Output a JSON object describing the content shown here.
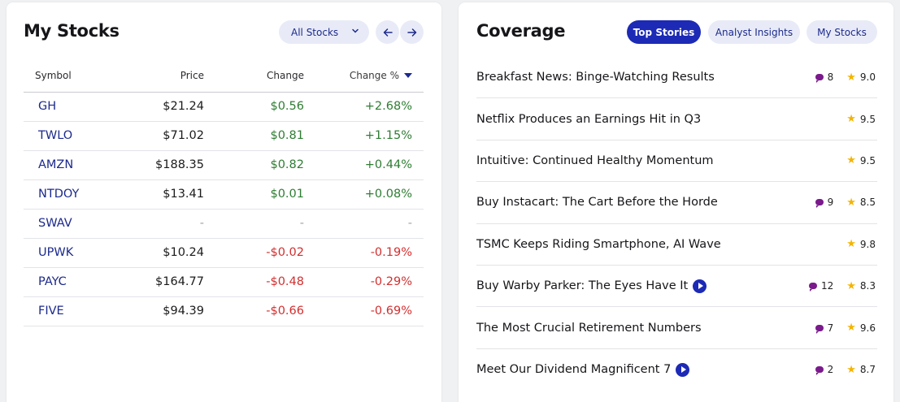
{
  "my_stocks": {
    "title": "My Stocks",
    "dropdown": {
      "selected": "All Stocks",
      "icon": "chevron-down-icon"
    },
    "nav": {
      "prev_icon": "arrow-left-icon",
      "next_icon": "arrow-right-icon"
    },
    "columns": {
      "symbol": "Symbol",
      "price": "Price",
      "change": "Change",
      "change_pct": "Change %"
    },
    "rows": [
      {
        "symbol": "GH",
        "price": "$21.24",
        "change": "$0.56",
        "change_pct": "+2.68%",
        "dir": "pos"
      },
      {
        "symbol": "TWLO",
        "price": "$71.02",
        "change": "$0.81",
        "change_pct": "+1.15%",
        "dir": "pos"
      },
      {
        "symbol": "AMZN",
        "price": "$188.35",
        "change": "$0.82",
        "change_pct": "+0.44%",
        "dir": "pos"
      },
      {
        "symbol": "NTDOY",
        "price": "$13.41",
        "change": "$0.01",
        "change_pct": "+0.08%",
        "dir": "pos"
      },
      {
        "symbol": "SWAV",
        "price": "-",
        "change": "-",
        "change_pct": "-",
        "dir": "nil"
      },
      {
        "symbol": "UPWK",
        "price": "$10.24",
        "change": "-$0.02",
        "change_pct": "-0.19%",
        "dir": "neg"
      },
      {
        "symbol": "PAYC",
        "price": "$164.77",
        "change": "-$0.48",
        "change_pct": "-0.29%",
        "dir": "neg"
      },
      {
        "symbol": "FIVE",
        "price": "$94.39",
        "change": "-$0.66",
        "change_pct": "-0.69%",
        "dir": "neg"
      }
    ]
  },
  "coverage": {
    "title": "Coverage",
    "tabs": [
      "Top Stories",
      "Analyst Insights",
      "My Stocks"
    ],
    "active_tab": "Top Stories",
    "stories": [
      {
        "title": "Breakfast News: Binge-Watching Results",
        "comments": "8",
        "rating": "9.0",
        "video": false
      },
      {
        "title": "Netflix Produces an Earnings Hit in Q3",
        "comments": null,
        "rating": "9.5",
        "video": false
      },
      {
        "title": "Intuitive: Continued Healthy Momentum",
        "comments": null,
        "rating": "9.5",
        "video": false
      },
      {
        "title": "Buy Instacart: The Cart Before the Horde",
        "comments": "9",
        "rating": "8.5",
        "video": false
      },
      {
        "title": "TSMC Keeps Riding Smartphone, AI Wave",
        "comments": null,
        "rating": "9.8",
        "video": false
      },
      {
        "title": "Buy Warby Parker: The Eyes Have It",
        "comments": "12",
        "rating": "8.3",
        "video": true
      },
      {
        "title": "The Most Crucial Retirement Numbers",
        "comments": "7",
        "rating": "9.6",
        "video": false
      },
      {
        "title": "Meet Our Dividend Magnificent 7",
        "comments": "2",
        "rating": "8.7",
        "video": true
      }
    ]
  },
  "colors": {
    "accent": "#1c2ab5",
    "positive": "#2e7d32",
    "negative": "#d32f2f",
    "comment": "#7a1a8c",
    "star": "#f4b400"
  }
}
